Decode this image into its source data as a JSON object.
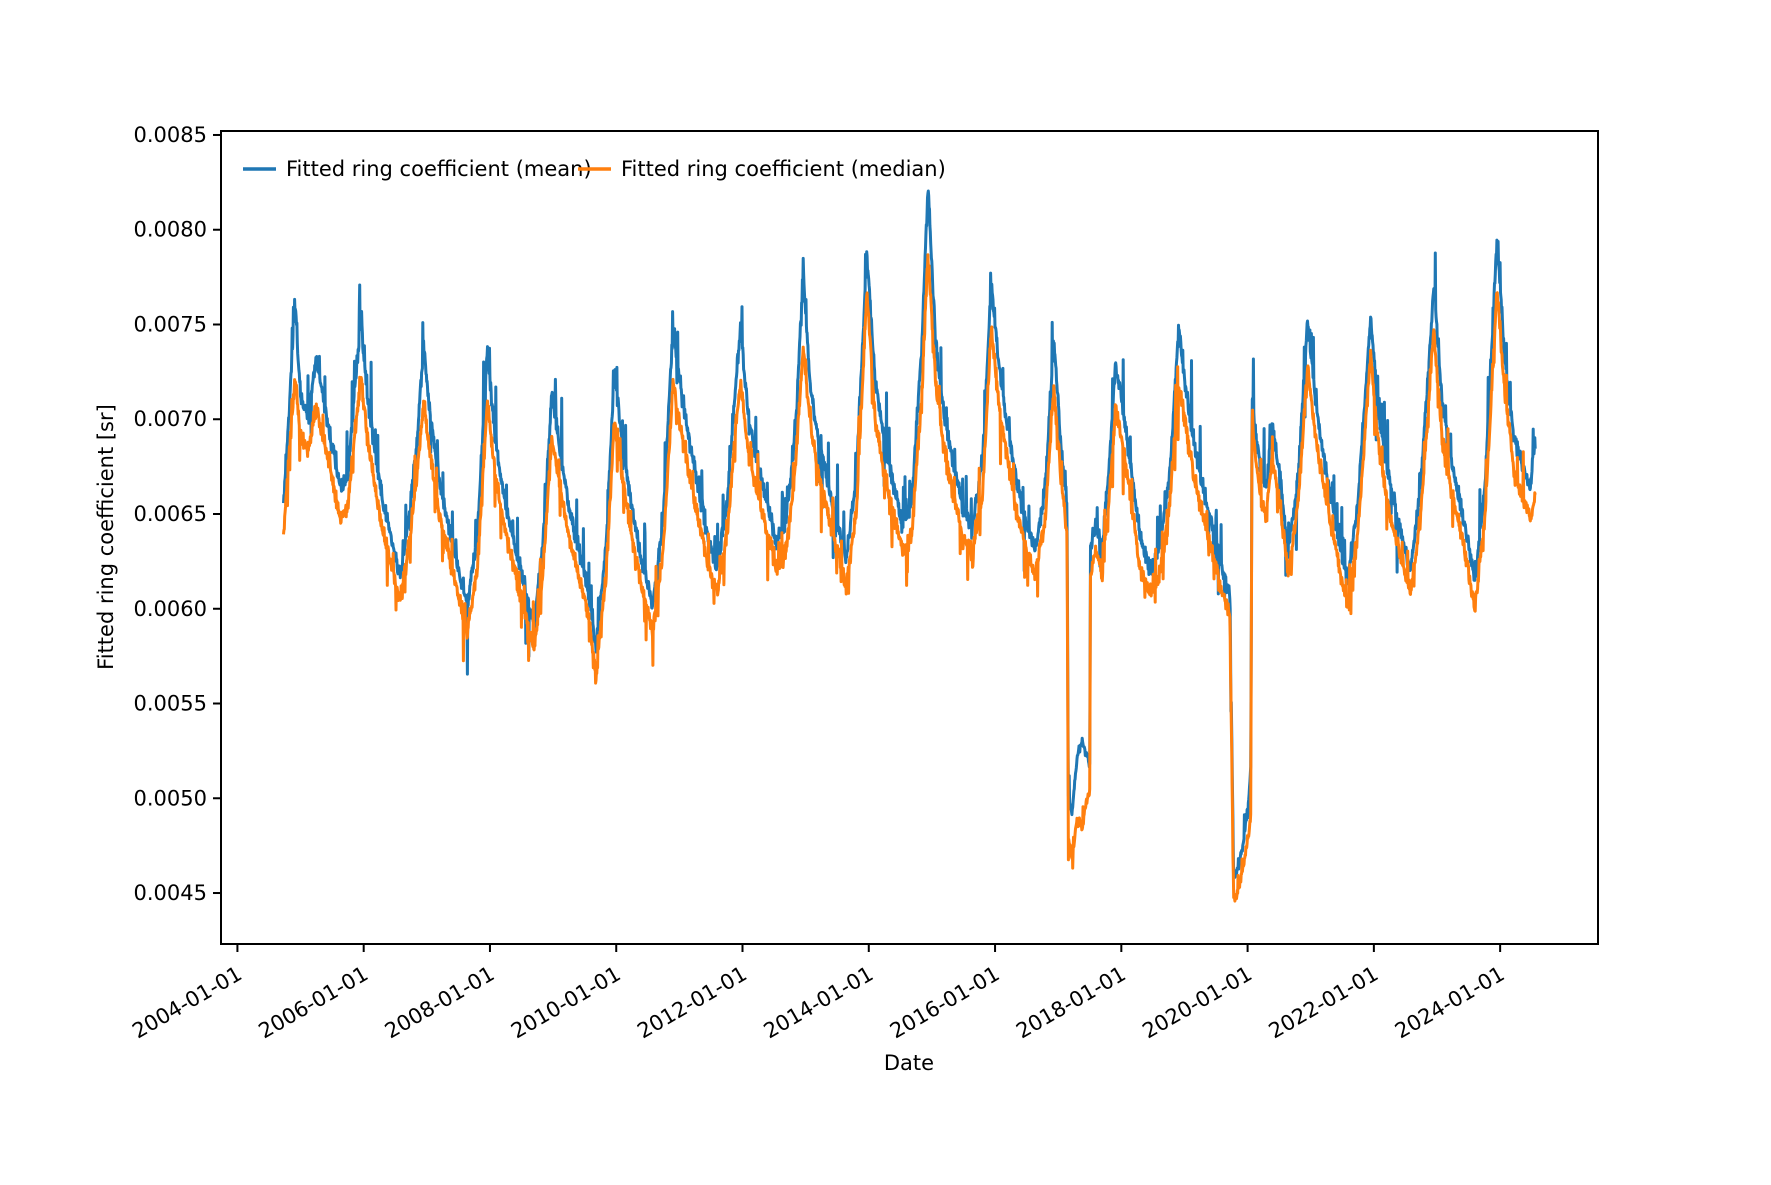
{
  "figure": {
    "background": "#ffffff"
  },
  "chart_data": {
    "type": "line",
    "title": "",
    "xlabel": "Date",
    "ylabel": "Fitted ring coefficient [sr]",
    "grid": false,
    "xlim": [
      2003.74,
      2025.55
    ],
    "ylim": [
      0.004231,
      0.008521
    ],
    "x_tick_values": [
      2004,
      2006,
      2008,
      2010,
      2012,
      2014,
      2016,
      2018,
      2020,
      2022,
      2024
    ],
    "x_tick_labels": [
      "2004-01-01",
      "2006-01-01",
      "2008-01-01",
      "2010-01-01",
      "2012-01-01",
      "2014-01-01",
      "2016-01-01",
      "2018-01-01",
      "2020-01-01",
      "2022-01-01",
      "2024-01-01"
    ],
    "y_tick_values": [
      0.0045,
      0.005,
      0.0055,
      0.006,
      0.0065,
      0.007,
      0.0075,
      0.008,
      0.0085
    ],
    "y_tick_labels": [
      "0.0045",
      "0.0050",
      "0.0055",
      "0.0060",
      "0.0065",
      "0.0070",
      "0.0075",
      "0.0080",
      "0.0085"
    ],
    "legend": {
      "position": "upper-left",
      "frame": false,
      "columns": 2
    },
    "series": [
      {
        "name": "Fitted ring coefficient (mean)",
        "color": "#1f77b4",
        "anchor_index": 1,
        "noise": {
          "seed": 101,
          "sigma": 6e-05,
          "spike_prob": 0.12,
          "spike_amp": 0.00038,
          "spike_up_fraction": 0.78
        }
      },
      {
        "name": "Fitted ring coefficient (median)",
        "color": "#ff7f0e",
        "anchor_index": 2,
        "noise": {
          "seed": 202,
          "sigma": 6e-05,
          "spike_prob": 0.12,
          "spike_amp": 0.00028,
          "spike_up_fraction": 0.45
        }
      }
    ],
    "samples_per_year": 160,
    "value_clamp": [
      0.00443,
      0.00834
    ],
    "anchors_format": [
      "decimal_year",
      "mean_value",
      "median_value"
    ],
    "anchors": [
      [
        2004.73,
        0.00656,
        0.0064
      ],
      [
        2004.8,
        0.00692,
        0.00672
      ],
      [
        2004.91,
        0.00762,
        0.00722
      ],
      [
        2005.0,
        0.00712,
        0.0069
      ],
      [
        2005.12,
        0.00702,
        0.00684
      ],
      [
        2005.25,
        0.00734,
        0.00706
      ],
      [
        2005.38,
        0.00708,
        0.00688
      ],
      [
        2005.5,
        0.00686,
        0.00668
      ],
      [
        2005.63,
        0.00663,
        0.00648
      ],
      [
        2005.75,
        0.0067,
        0.00654
      ],
      [
        2005.88,
        0.00724,
        0.007
      ],
      [
        2005.96,
        0.00752,
        0.00722
      ],
      [
        2006.06,
        0.0071,
        0.0069
      ],
      [
        2006.18,
        0.00682,
        0.00664
      ],
      [
        2006.3,
        0.00658,
        0.00642
      ],
      [
        2006.44,
        0.00636,
        0.00622
      ],
      [
        2006.58,
        0.00617,
        0.00604
      ],
      [
        2006.7,
        0.00645,
        0.0063
      ],
      [
        2006.84,
        0.00686,
        0.00668
      ],
      [
        2006.95,
        0.00738,
        0.0071
      ],
      [
        2007.06,
        0.007,
        0.0068
      ],
      [
        2007.2,
        0.00666,
        0.0065
      ],
      [
        2007.34,
        0.00645,
        0.0063
      ],
      [
        2007.48,
        0.00624,
        0.0061
      ],
      [
        2007.64,
        0.00601,
        0.00588
      ],
      [
        2007.8,
        0.00638,
        0.00622
      ],
      [
        2007.96,
        0.00738,
        0.0071
      ],
      [
        2008.08,
        0.0069,
        0.00672
      ],
      [
        2008.22,
        0.0066,
        0.00644
      ],
      [
        2008.38,
        0.00636,
        0.00622
      ],
      [
        2008.54,
        0.00613,
        0.006
      ],
      [
        2008.7,
        0.00591,
        0.00578
      ],
      [
        2008.84,
        0.00636,
        0.0062
      ],
      [
        2008.98,
        0.00714,
        0.0069
      ],
      [
        2009.1,
        0.00686,
        0.00668
      ],
      [
        2009.24,
        0.00655,
        0.0064
      ],
      [
        2009.4,
        0.00632,
        0.00618
      ],
      [
        2009.54,
        0.00613,
        0.006
      ],
      [
        2009.68,
        0.0058,
        0.00566
      ],
      [
        2009.84,
        0.00634,
        0.00618
      ],
      [
        2009.97,
        0.00726,
        0.007
      ],
      [
        2010.1,
        0.00686,
        0.00668
      ],
      [
        2010.24,
        0.00655,
        0.0064
      ],
      [
        2010.4,
        0.00626,
        0.00612
      ],
      [
        2010.58,
        0.00601,
        0.00588
      ],
      [
        2010.74,
        0.00646,
        0.0063
      ],
      [
        2010.9,
        0.00748,
        0.00718
      ],
      [
        2011.02,
        0.00716,
        0.00696
      ],
      [
        2011.16,
        0.00688,
        0.0067
      ],
      [
        2011.3,
        0.00664,
        0.00648
      ],
      [
        2011.46,
        0.00636,
        0.00622
      ],
      [
        2011.6,
        0.00621,
        0.00608
      ],
      [
        2011.76,
        0.00656,
        0.0064
      ],
      [
        2011.9,
        0.00722,
        0.007
      ],
      [
        2011.97,
        0.00748,
        0.0072
      ],
      [
        2012.1,
        0.007,
        0.0068
      ],
      [
        2012.24,
        0.00676,
        0.0066
      ],
      [
        2012.38,
        0.00657,
        0.00642
      ],
      [
        2012.54,
        0.00634,
        0.0062
      ],
      [
        2012.7,
        0.00648,
        0.00632
      ],
      [
        2012.84,
        0.00695,
        0.00676
      ],
      [
        2012.96,
        0.00775,
        0.00738
      ],
      [
        2013.08,
        0.00716,
        0.00696
      ],
      [
        2013.22,
        0.00686,
        0.00668
      ],
      [
        2013.36,
        0.00665,
        0.0065
      ],
      [
        2013.5,
        0.00644,
        0.0063
      ],
      [
        2013.64,
        0.00626,
        0.00612
      ],
      [
        2013.8,
        0.00668,
        0.0065
      ],
      [
        2013.97,
        0.00788,
        0.00768
      ],
      [
        2014.1,
        0.0072,
        0.007
      ],
      [
        2014.24,
        0.0069,
        0.00672
      ],
      [
        2014.38,
        0.00667,
        0.00652
      ],
      [
        2014.54,
        0.00644,
        0.0063
      ],
      [
        2014.68,
        0.00656,
        0.0064
      ],
      [
        2014.84,
        0.0074,
        0.00714
      ],
      [
        2014.94,
        0.00824,
        0.00788
      ],
      [
        2015.06,
        0.0074,
        0.00718
      ],
      [
        2015.2,
        0.007,
        0.00682
      ],
      [
        2015.34,
        0.00676,
        0.0066
      ],
      [
        2015.5,
        0.00652,
        0.00638
      ],
      [
        2015.64,
        0.00644,
        0.0063
      ],
      [
        2015.8,
        0.00678,
        0.0066
      ],
      [
        2015.94,
        0.00772,
        0.00748
      ],
      [
        2016.06,
        0.00728,
        0.00708
      ],
      [
        2016.2,
        0.00696,
        0.00678
      ],
      [
        2016.34,
        0.00667,
        0.00652
      ],
      [
        2016.5,
        0.00644,
        0.0063
      ],
      [
        2016.64,
        0.00631,
        0.00618
      ],
      [
        2016.8,
        0.00666,
        0.0065
      ],
      [
        2016.93,
        0.00742,
        0.00718
      ],
      [
        2017.04,
        0.00688,
        0.0067
      ],
      [
        2017.14,
        0.00654,
        0.0064
      ],
      [
        2017.16,
        0.005,
        0.0048
      ],
      [
        2017.22,
        0.00492,
        0.00467
      ],
      [
        2017.3,
        0.00522,
        0.0049
      ],
      [
        2017.38,
        0.0053,
        0.00484
      ],
      [
        2017.44,
        0.00524,
        0.00498
      ],
      [
        2017.5,
        0.00518,
        0.00504
      ],
      [
        2017.51,
        0.00632,
        0.00618
      ],
      [
        2017.6,
        0.00645,
        0.0063
      ],
      [
        2017.7,
        0.00632,
        0.00618
      ],
      [
        2017.8,
        0.00672,
        0.00656
      ],
      [
        2017.91,
        0.0073,
        0.00706
      ],
      [
        2018.02,
        0.00706,
        0.00688
      ],
      [
        2018.16,
        0.00672,
        0.00656
      ],
      [
        2018.3,
        0.00636,
        0.0062
      ],
      [
        2018.46,
        0.00621,
        0.00608
      ],
      [
        2018.6,
        0.00632,
        0.00618
      ],
      [
        2018.76,
        0.00668,
        0.00652
      ],
      [
        2018.91,
        0.00748,
        0.00718
      ],
      [
        2019.02,
        0.00716,
        0.00698
      ],
      [
        2019.16,
        0.00685,
        0.00668
      ],
      [
        2019.3,
        0.00663,
        0.00648
      ],
      [
        2019.46,
        0.00641,
        0.00628
      ],
      [
        2019.6,
        0.0062,
        0.00608
      ],
      [
        2019.72,
        0.00608,
        0.00596
      ],
      [
        2019.78,
        0.00458,
        0.00446
      ],
      [
        2019.86,
        0.00464,
        0.00452
      ],
      [
        2019.94,
        0.00478,
        0.00466
      ],
      [
        2020.02,
        0.005,
        0.00482
      ],
      [
        2020.05,
        0.00516,
        0.00492
      ],
      [
        2020.07,
        0.00712,
        0.007
      ],
      [
        2020.14,
        0.0069,
        0.00676
      ],
      [
        2020.22,
        0.0067,
        0.00656
      ],
      [
        2020.3,
        0.00664,
        0.0065
      ],
      [
        2020.38,
        0.00696,
        0.00678
      ],
      [
        2020.5,
        0.00674,
        0.0066
      ],
      [
        2020.64,
        0.0063,
        0.00618
      ],
      [
        2020.8,
        0.0067,
        0.00656
      ],
      [
        2020.95,
        0.00752,
        0.00728
      ],
      [
        2021.08,
        0.00708,
        0.0069
      ],
      [
        2021.22,
        0.00678,
        0.00662
      ],
      [
        2021.38,
        0.00648,
        0.00634
      ],
      [
        2021.58,
        0.00614,
        0.006
      ],
      [
        2021.74,
        0.00654,
        0.00638
      ],
      [
        2021.95,
        0.00754,
        0.00734
      ],
      [
        2022.08,
        0.00702,
        0.00684
      ],
      [
        2022.24,
        0.00668,
        0.00652
      ],
      [
        2022.4,
        0.00644,
        0.0063
      ],
      [
        2022.58,
        0.0062,
        0.00608
      ],
      [
        2022.74,
        0.00664,
        0.00648
      ],
      [
        2022.95,
        0.0077,
        0.00748
      ],
      [
        2023.08,
        0.00708,
        0.0069
      ],
      [
        2023.24,
        0.00676,
        0.0066
      ],
      [
        2023.4,
        0.00652,
        0.00638
      ],
      [
        2023.6,
        0.00614,
        0.006
      ],
      [
        2023.76,
        0.00664,
        0.00648
      ],
      [
        2023.95,
        0.00795,
        0.00768
      ],
      [
        2024.08,
        0.0073,
        0.00712
      ],
      [
        2024.22,
        0.0069,
        0.00672
      ],
      [
        2024.36,
        0.00676,
        0.0066
      ],
      [
        2024.48,
        0.00664,
        0.00648
      ],
      [
        2024.56,
        0.0069,
        0.0066
      ]
    ]
  }
}
